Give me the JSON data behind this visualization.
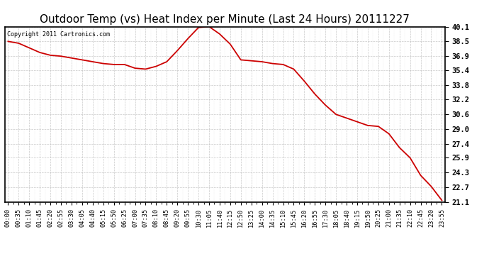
{
  "title": "Outdoor Temp (vs) Heat Index per Minute (Last 24 Hours) 20111227",
  "copyright_text": "Copyright 2011 Cartronics.com",
  "line_color": "#cc0000",
  "background_color": "#ffffff",
  "plot_background": "#ffffff",
  "grid_color": "#bbbbbb",
  "title_fontsize": 11,
  "yticks": [
    21.1,
    22.7,
    24.3,
    25.9,
    27.4,
    29.0,
    30.6,
    32.2,
    33.8,
    35.4,
    36.9,
    38.5,
    40.1
  ],
  "ylim": [
    21.1,
    40.1
  ],
  "xtick_labels": [
    "00:00",
    "00:35",
    "01:10",
    "01:45",
    "02:20",
    "02:55",
    "03:30",
    "04:05",
    "04:40",
    "05:15",
    "05:50",
    "06:25",
    "07:00",
    "07:35",
    "08:10",
    "08:45",
    "09:20",
    "09:55",
    "10:30",
    "11:05",
    "11:40",
    "12:15",
    "12:50",
    "13:25",
    "14:00",
    "14:35",
    "15:10",
    "15:45",
    "16:20",
    "16:55",
    "17:30",
    "18:05",
    "18:40",
    "19:15",
    "19:50",
    "20:25",
    "21:00",
    "21:35",
    "22:10",
    "22:45",
    "23:20",
    "23:55"
  ],
  "curve_y": [
    38.5,
    38.3,
    37.8,
    37.3,
    37.0,
    36.9,
    36.7,
    36.5,
    36.3,
    36.1,
    36.0,
    36.0,
    35.6,
    35.5,
    35.8,
    36.3,
    37.5,
    38.8,
    40.0,
    40.1,
    39.3,
    38.2,
    36.5,
    36.4,
    36.3,
    36.1,
    36.0,
    35.5,
    34.2,
    32.8,
    31.6,
    30.6,
    30.2,
    29.8,
    29.4,
    29.3,
    28.5,
    27.0,
    25.9,
    24.0,
    22.8,
    21.3
  ]
}
